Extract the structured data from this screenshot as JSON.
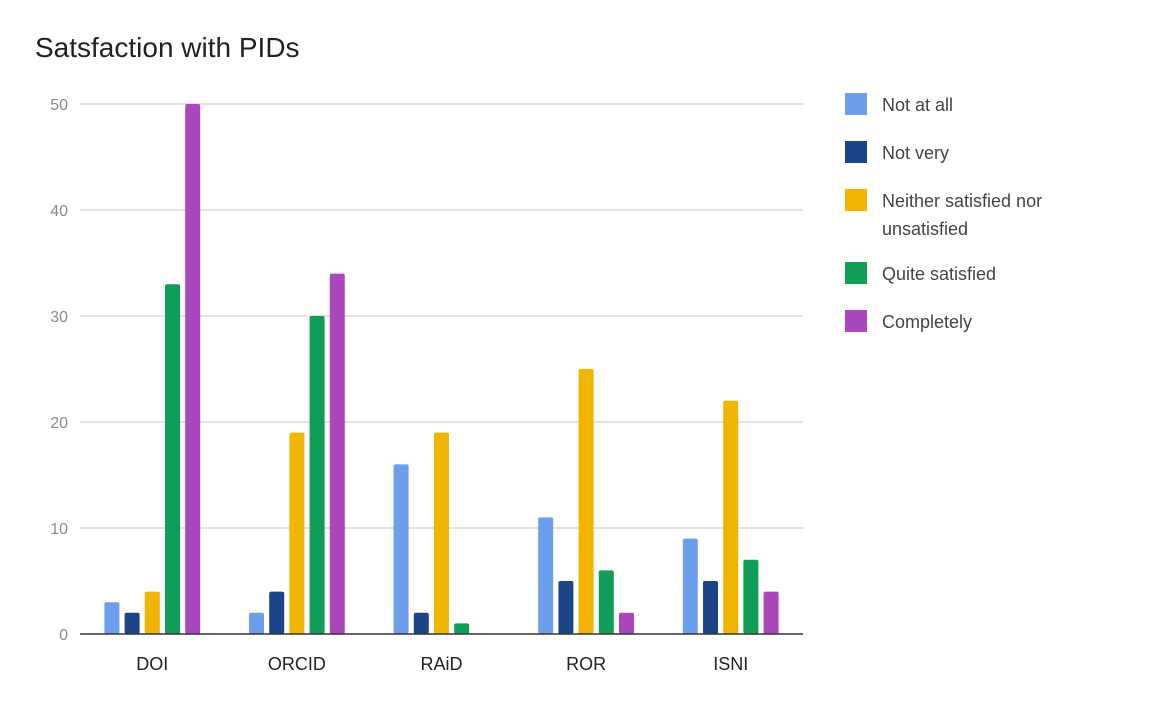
{
  "chart_data": {
    "type": "bar",
    "title": "Satsfaction with PIDs",
    "xlabel": "",
    "ylabel": "",
    "ylim": [
      0,
      50
    ],
    "yticks": [
      0,
      10,
      20,
      30,
      40,
      50
    ],
    "grid": true,
    "legend_position": "right",
    "categories": [
      "DOI",
      "ORCID",
      "RAiD",
      "ROR",
      "ISNI"
    ],
    "series": [
      {
        "name": "Not at all",
        "color": "#6d9eeb",
        "values": [
          3,
          2,
          16,
          11,
          9
        ]
      },
      {
        "name": "Not very",
        "color": "#1c4587",
        "values": [
          2,
          4,
          2,
          5,
          5
        ]
      },
      {
        "name": "Neither satisfied nor unsatisfied",
        "color": "#f1b500",
        "values": [
          4,
          19,
          19,
          25,
          22
        ]
      },
      {
        "name": "Quite satisfied",
        "color": "#0f9d58",
        "values": [
          33,
          30,
          1,
          6,
          7
        ]
      },
      {
        "name": "Completely",
        "color": "#ab47bc",
        "values": [
          50,
          34,
          0,
          2,
          4
        ]
      }
    ]
  }
}
